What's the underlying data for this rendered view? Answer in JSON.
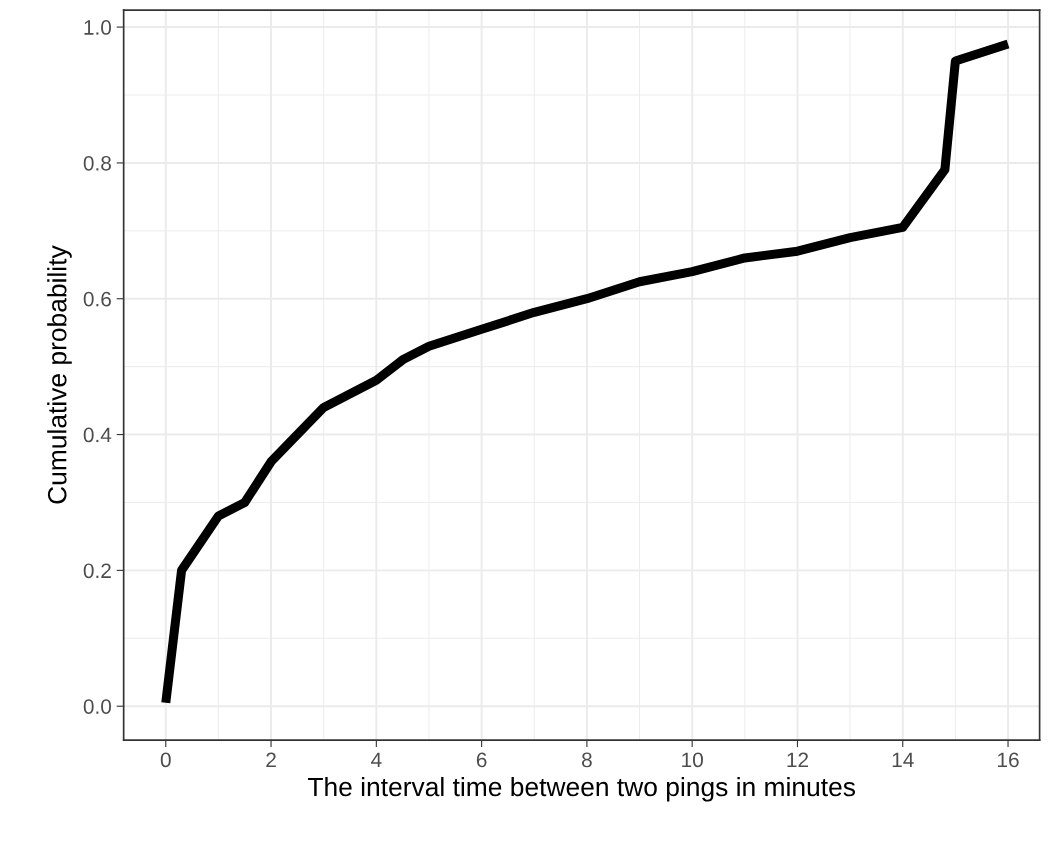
{
  "chart_data": {
    "type": "line",
    "xlabel": "The interval time between two pings in minutes",
    "ylabel": "Cumulative probability",
    "x": [
      0,
      0.3,
      1,
      1.5,
      2,
      3,
      4,
      4.5,
      5,
      6,
      7,
      8,
      9,
      10,
      11,
      12,
      13,
      14,
      14.8,
      15,
      16
    ],
    "series": [
      {
        "color": "#000000",
        "values": [
          0.005,
          0.2,
          0.28,
          0.3,
          0.36,
          0.44,
          0.48,
          0.51,
          0.53,
          0.555,
          0.58,
          0.6,
          0.625,
          0.64,
          0.66,
          0.67,
          0.69,
          0.705,
          0.79,
          0.95,
          0.975
        ]
      }
    ],
    "xlim": [
      -0.8,
      16.6
    ],
    "ylim": [
      -0.05,
      1.025
    ],
    "xticks": [
      0,
      2,
      4,
      6,
      8,
      10,
      12,
      14,
      16
    ],
    "yticks": [
      {
        "value": 0,
        "label": "0.0"
      },
      {
        "value": 0.2,
        "label": "0.2"
      },
      {
        "value": 0.4,
        "label": "0.4"
      },
      {
        "value": 0.6,
        "label": "0.6"
      },
      {
        "value": 0.8,
        "label": "0.8"
      },
      {
        "value": 1,
        "label": "1.0"
      }
    ],
    "grid": true,
    "line_style": "solid",
    "marker": "none"
  }
}
